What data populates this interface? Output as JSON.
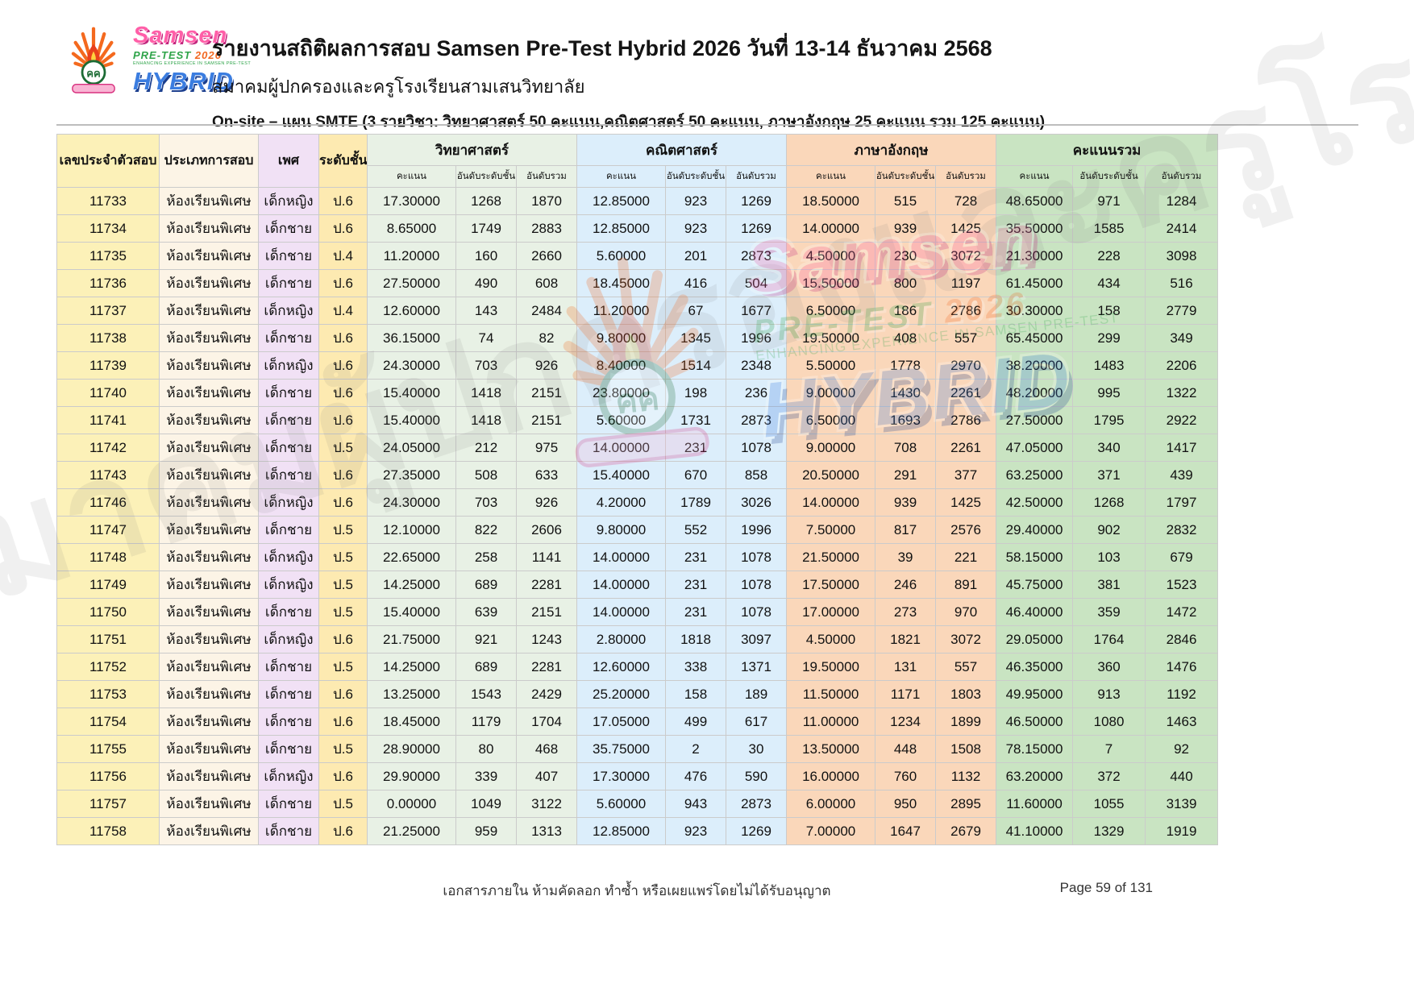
{
  "header": {
    "title": "รายงานสถิติผลการสอบ Samsen Pre-Test Hybrid 2026 วันที่ 13-14 ธันวาคม 2568",
    "subtitle": "สมาคมผู้ปกครองและครูโรงเรียนสามเสนวิทยาลัย",
    "plan_line": "On-site – แผน SMTE (3 รายวิชา: วิทยาศาสตร์ 50 คะแนน,คณิตศาสตร์ 50 คะแนน,  ภาษาอังกฤษ 25 คะแนน รวม 125 คะแนน)",
    "logo": {
      "name": "Samsen",
      "pretest": "PRE-TEST",
      "year": "2026",
      "tagline": "ENHANCING EXPERIENCE IN SAMSEN PRE-TEST",
      "hybrid": "HYBRID"
    }
  },
  "table": {
    "columns": [
      "เลขประจำตัวสอบ",
      "ประเภทการสอบ",
      "เพศ",
      "ระดับชั้น"
    ],
    "subject_groups": [
      {
        "label": "วิทยาศาสตร์",
        "color": "#e8f1e5"
      },
      {
        "label": "คณิตศาสตร์",
        "color": "#dceefb"
      },
      {
        "label": "ภาษาอังกฤษ",
        "color": "#fad7ba"
      },
      {
        "label": "คะแนนรวม",
        "color": "#c9e4c2"
      }
    ],
    "sub_columns": [
      "คะแนน",
      "อันดับระดับชั้น",
      "อันดับรวม"
    ],
    "rows": [
      [
        "11733",
        "ห้องเรียนพิเศษ",
        "เด็กหญิง",
        "ป.6",
        "17.30000",
        "1268",
        "1870",
        "12.85000",
        "923",
        "1269",
        "18.50000",
        "515",
        "728",
        "48.65000",
        "971",
        "1284"
      ],
      [
        "11734",
        "ห้องเรียนพิเศษ",
        "เด็กชาย",
        "ป.6",
        "8.65000",
        "1749",
        "2883",
        "12.85000",
        "923",
        "1269",
        "14.00000",
        "939",
        "1425",
        "35.50000",
        "1585",
        "2414"
      ],
      [
        "11735",
        "ห้องเรียนพิเศษ",
        "เด็กชาย",
        "ป.4",
        "11.20000",
        "160",
        "2660",
        "5.60000",
        "201",
        "2873",
        "4.50000",
        "230",
        "3072",
        "21.30000",
        "228",
        "3098"
      ],
      [
        "11736",
        "ห้องเรียนพิเศษ",
        "เด็กชาย",
        "ป.6",
        "27.50000",
        "490",
        "608",
        "18.45000",
        "416",
        "504",
        "15.50000",
        "800",
        "1197",
        "61.45000",
        "434",
        "516"
      ],
      [
        "11737",
        "ห้องเรียนพิเศษ",
        "เด็กหญิง",
        "ป.4",
        "12.60000",
        "143",
        "2484",
        "11.20000",
        "67",
        "1677",
        "6.50000",
        "186",
        "2786",
        "30.30000",
        "158",
        "2779"
      ],
      [
        "11738",
        "ห้องเรียนพิเศษ",
        "เด็กชาย",
        "ป.6",
        "36.15000",
        "74",
        "82",
        "9.80000",
        "1345",
        "1996",
        "19.50000",
        "408",
        "557",
        "65.45000",
        "299",
        "349"
      ],
      [
        "11739",
        "ห้องเรียนพิเศษ",
        "เด็กหญิง",
        "ป.6",
        "24.30000",
        "703",
        "926",
        "8.40000",
        "1514",
        "2348",
        "5.50000",
        "1778",
        "2970",
        "38.20000",
        "1483",
        "2206"
      ],
      [
        "11740",
        "ห้องเรียนพิเศษ",
        "เด็กชาย",
        "ป.6",
        "15.40000",
        "1418",
        "2151",
        "23.80000",
        "198",
        "236",
        "9.00000",
        "1430",
        "2261",
        "48.20000",
        "995",
        "1322"
      ],
      [
        "11741",
        "ห้องเรียนพิเศษ",
        "เด็กชาย",
        "ป.6",
        "15.40000",
        "1418",
        "2151",
        "5.60000",
        "1731",
        "2873",
        "6.50000",
        "1693",
        "2786",
        "27.50000",
        "1795",
        "2922"
      ],
      [
        "11742",
        "ห้องเรียนพิเศษ",
        "เด็กชาย",
        "ป.5",
        "24.05000",
        "212",
        "975",
        "14.00000",
        "231",
        "1078",
        "9.00000",
        "708",
        "2261",
        "47.05000",
        "340",
        "1417"
      ],
      [
        "11743",
        "ห้องเรียนพิเศษ",
        "เด็กชาย",
        "ป.6",
        "27.35000",
        "508",
        "633",
        "15.40000",
        "670",
        "858",
        "20.50000",
        "291",
        "377",
        "63.25000",
        "371",
        "439"
      ],
      [
        "11746",
        "ห้องเรียนพิเศษ",
        "เด็กหญิง",
        "ป.6",
        "24.30000",
        "703",
        "926",
        "4.20000",
        "1789",
        "3026",
        "14.00000",
        "939",
        "1425",
        "42.50000",
        "1268",
        "1797"
      ],
      [
        "11747",
        "ห้องเรียนพิเศษ",
        "เด็กชาย",
        "ป.5",
        "12.10000",
        "822",
        "2606",
        "9.80000",
        "552",
        "1996",
        "7.50000",
        "817",
        "2576",
        "29.40000",
        "902",
        "2832"
      ],
      [
        "11748",
        "ห้องเรียนพิเศษ",
        "เด็กหญิง",
        "ป.5",
        "22.65000",
        "258",
        "1141",
        "14.00000",
        "231",
        "1078",
        "21.50000",
        "39",
        "221",
        "58.15000",
        "103",
        "679"
      ],
      [
        "11749",
        "ห้องเรียนพิเศษ",
        "เด็กหญิง",
        "ป.5",
        "14.25000",
        "689",
        "2281",
        "14.00000",
        "231",
        "1078",
        "17.50000",
        "246",
        "891",
        "45.75000",
        "381",
        "1523"
      ],
      [
        "11750",
        "ห้องเรียนพิเศษ",
        "เด็กชาย",
        "ป.5",
        "15.40000",
        "639",
        "2151",
        "14.00000",
        "231",
        "1078",
        "17.00000",
        "273",
        "970",
        "46.40000",
        "359",
        "1472"
      ],
      [
        "11751",
        "ห้องเรียนพิเศษ",
        "เด็กหญิง",
        "ป.6",
        "21.75000",
        "921",
        "1243",
        "2.80000",
        "1818",
        "3097",
        "4.50000",
        "1821",
        "3072",
        "29.05000",
        "1764",
        "2846"
      ],
      [
        "11752",
        "ห้องเรียนพิเศษ",
        "เด็กชาย",
        "ป.5",
        "14.25000",
        "689",
        "2281",
        "12.60000",
        "338",
        "1371",
        "19.50000",
        "131",
        "557",
        "46.35000",
        "360",
        "1476"
      ],
      [
        "11753",
        "ห้องเรียนพิเศษ",
        "เด็กชาย",
        "ป.6",
        "13.25000",
        "1543",
        "2429",
        "25.20000",
        "158",
        "189",
        "11.50000",
        "1171",
        "1803",
        "49.95000",
        "913",
        "1192"
      ],
      [
        "11754",
        "ห้องเรียนพิเศษ",
        "เด็กชาย",
        "ป.6",
        "18.45000",
        "1179",
        "1704",
        "17.05000",
        "499",
        "617",
        "11.00000",
        "1234",
        "1899",
        "46.50000",
        "1080",
        "1463"
      ],
      [
        "11755",
        "ห้องเรียนพิเศษ",
        "เด็กชาย",
        "ป.5",
        "28.90000",
        "80",
        "468",
        "35.75000",
        "2",
        "30",
        "13.50000",
        "448",
        "1508",
        "78.15000",
        "7",
        "92"
      ],
      [
        "11756",
        "ห้องเรียนพิเศษ",
        "เด็กหญิง",
        "ป.6",
        "29.90000",
        "339",
        "407",
        "17.30000",
        "476",
        "590",
        "16.00000",
        "760",
        "1132",
        "63.20000",
        "372",
        "440"
      ],
      [
        "11757",
        "ห้องเรียนพิเศษ",
        "เด็กชาย",
        "ป.5",
        "0.00000",
        "1049",
        "3122",
        "5.60000",
        "943",
        "2873",
        "6.00000",
        "950",
        "2895",
        "11.60000",
        "1055",
        "3139"
      ],
      [
        "11758",
        "ห้องเรียนพิเศษ",
        "เด็กชาย",
        "ป.6",
        "21.25000",
        "959",
        "1313",
        "12.85000",
        "923",
        "1269",
        "7.00000",
        "1647",
        "2679",
        "41.10000",
        "1329",
        "1919"
      ]
    ]
  },
  "footer": {
    "disclaimer": "เอกสารภายใน ห้ามคัดลอก ทำซ้ำ หรือเผยแพร่โดยไม่ได้รับอนุญาต",
    "page": "Page 59 of 131"
  },
  "watermark": {
    "diagonal_text": "สมาคมผู้ปกครองและครูโรงเรียนสามเสนวิทยาลัย"
  }
}
